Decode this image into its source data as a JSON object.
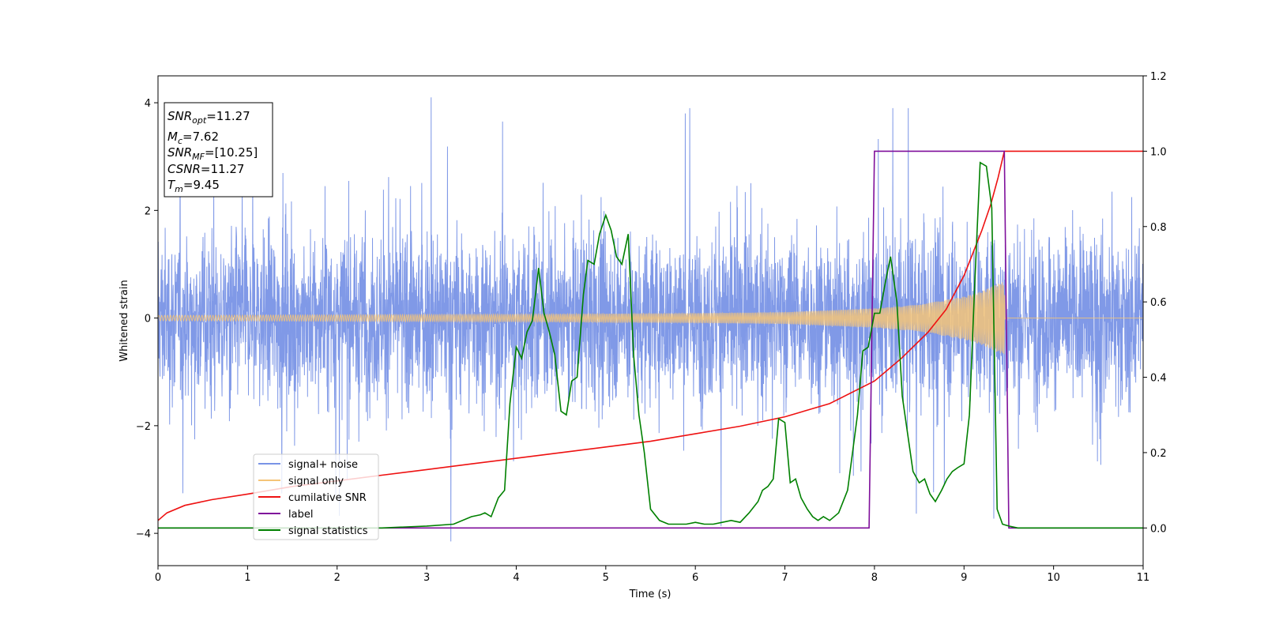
{
  "chart_data": {
    "type": "line",
    "xlabel": "Time (s)",
    "ylabel_left": "Whitened strain",
    "ylabel_right": "",
    "xlim": [
      0,
      11
    ],
    "ylim_left": [
      -4.6,
      4.5
    ],
    "ylim_right": [
      -0.1,
      1.2
    ],
    "xticks": [
      "0",
      "1",
      "2",
      "3",
      "4",
      "5",
      "6",
      "7",
      "8",
      "9",
      "10",
      "11"
    ],
    "yticks_left": [
      "4",
      "2",
      "0",
      "−2",
      "−4"
    ],
    "yticks_right": [
      "1.2",
      "1.0",
      "0.8",
      "0.6",
      "0.4",
      "0.2",
      "0.0"
    ],
    "grid": false,
    "legend_position": "lower-left",
    "info_box": {
      "snr_opt": {
        "main": "SNR",
        "sub": "opt",
        "value": "=11.27"
      },
      "mc": {
        "main": "M",
        "sub": "c",
        "value": "=7.62"
      },
      "snr_mf": {
        "main": "SNR",
        "sub": "MF",
        "value": "=[10.25]"
      },
      "csnr": {
        "main": "CSNR",
        "value": "=11.27"
      },
      "tm": {
        "main": "T",
        "sub": "m",
        "value": "=9.45"
      }
    },
    "series": [
      {
        "name": "signal+ noise",
        "axis": "left",
        "color": "#7994e6",
        "description_values": "noise band, std approx 1.0, spikes up to approx 4.1 near t=3.05 and down to -4.15 near t=3.27"
      },
      {
        "name": "signal only",
        "axis": "left",
        "color": "#f5c478",
        "envelope": {
          "t": [
            0,
            2,
            4,
            6,
            7,
            8,
            8.5,
            9,
            9.2,
            9.35,
            9.45,
            9.46,
            11
          ],
          "amp": [
            0.05,
            0.06,
            0.07,
            0.09,
            0.11,
            0.18,
            0.25,
            0.4,
            0.5,
            0.62,
            0.68,
            0.0,
            0.0
          ]
        }
      },
      {
        "name": "cumilative SNR",
        "axis": "right",
        "color": "#ee1111",
        "x": [
          0,
          0.1,
          0.3,
          0.6,
          1,
          1.5,
          2,
          2.5,
          3,
          3.5,
          4,
          4.5,
          5,
          5.5,
          6,
          6.5,
          7,
          7.5,
          8,
          8.3,
          8.6,
          8.8,
          9.0,
          9.1,
          9.2,
          9.3,
          9.38,
          9.45,
          11
        ],
        "values": [
          0.02,
          0.04,
          0.06,
          0.075,
          0.09,
          0.11,
          0.125,
          0.14,
          0.155,
          0.17,
          0.185,
          0.2,
          0.215,
          0.23,
          0.25,
          0.27,
          0.295,
          0.33,
          0.39,
          0.45,
          0.52,
          0.58,
          0.67,
          0.73,
          0.79,
          0.86,
          0.93,
          1.0,
          1.0
        ]
      },
      {
        "name": "label",
        "axis": "right",
        "color": "#7f0f9b",
        "x": [
          0,
          7.94,
          8.0,
          9.45,
          9.5,
          11
        ],
        "values": [
          0.0,
          0.0,
          1.0,
          1.0,
          0.0,
          0.0
        ]
      },
      {
        "name": "signal statistics",
        "axis": "right",
        "color": "#008000",
        "x": [
          0,
          2.5,
          3.0,
          3.3,
          3.5,
          3.6,
          3.65,
          3.72,
          3.8,
          3.87,
          3.93,
          4.0,
          4.06,
          4.12,
          4.18,
          4.25,
          4.31,
          4.37,
          4.43,
          4.5,
          4.56,
          4.62,
          4.68,
          4.75,
          4.8,
          4.87,
          4.93,
          5.0,
          5.06,
          5.12,
          5.18,
          5.25,
          5.31,
          5.37,
          5.43,
          5.5,
          5.6,
          5.7,
          5.8,
          5.9,
          6.0,
          6.1,
          6.2,
          6.3,
          6.4,
          6.5,
          6.6,
          6.7,
          6.75,
          6.81,
          6.87,
          6.93,
          7.0,
          7.06,
          7.12,
          7.18,
          7.25,
          7.31,
          7.37,
          7.43,
          7.5,
          7.6,
          7.7,
          7.81,
          7.87,
          7.93,
          8.0,
          8.06,
          8.12,
          8.18,
          8.25,
          8.31,
          8.37,
          8.43,
          8.5,
          8.56,
          8.62,
          8.68,
          8.75,
          8.81,
          8.87,
          8.93,
          9.0,
          9.06,
          9.12,
          9.18,
          9.25,
          9.31,
          9.37,
          9.43,
          9.5,
          9.6,
          9.8,
          11
        ],
        "values": [
          0.0,
          0.0,
          0.005,
          0.01,
          0.03,
          0.035,
          0.04,
          0.03,
          0.08,
          0.1,
          0.33,
          0.48,
          0.45,
          0.52,
          0.55,
          0.69,
          0.57,
          0.52,
          0.46,
          0.31,
          0.3,
          0.39,
          0.4,
          0.62,
          0.71,
          0.7,
          0.78,
          0.83,
          0.79,
          0.72,
          0.7,
          0.78,
          0.46,
          0.3,
          0.2,
          0.05,
          0.02,
          0.01,
          0.01,
          0.01,
          0.015,
          0.01,
          0.01,
          0.015,
          0.02,
          0.015,
          0.04,
          0.07,
          0.1,
          0.11,
          0.13,
          0.29,
          0.28,
          0.12,
          0.13,
          0.08,
          0.05,
          0.03,
          0.02,
          0.03,
          0.02,
          0.04,
          0.1,
          0.3,
          0.47,
          0.48,
          0.57,
          0.57,
          0.65,
          0.72,
          0.6,
          0.35,
          0.25,
          0.15,
          0.12,
          0.13,
          0.09,
          0.07,
          0.1,
          0.13,
          0.15,
          0.16,
          0.17,
          0.3,
          0.65,
          0.97,
          0.96,
          0.85,
          0.05,
          0.01,
          0.005,
          0.0,
          0.0,
          0.0
        ]
      }
    ]
  }
}
